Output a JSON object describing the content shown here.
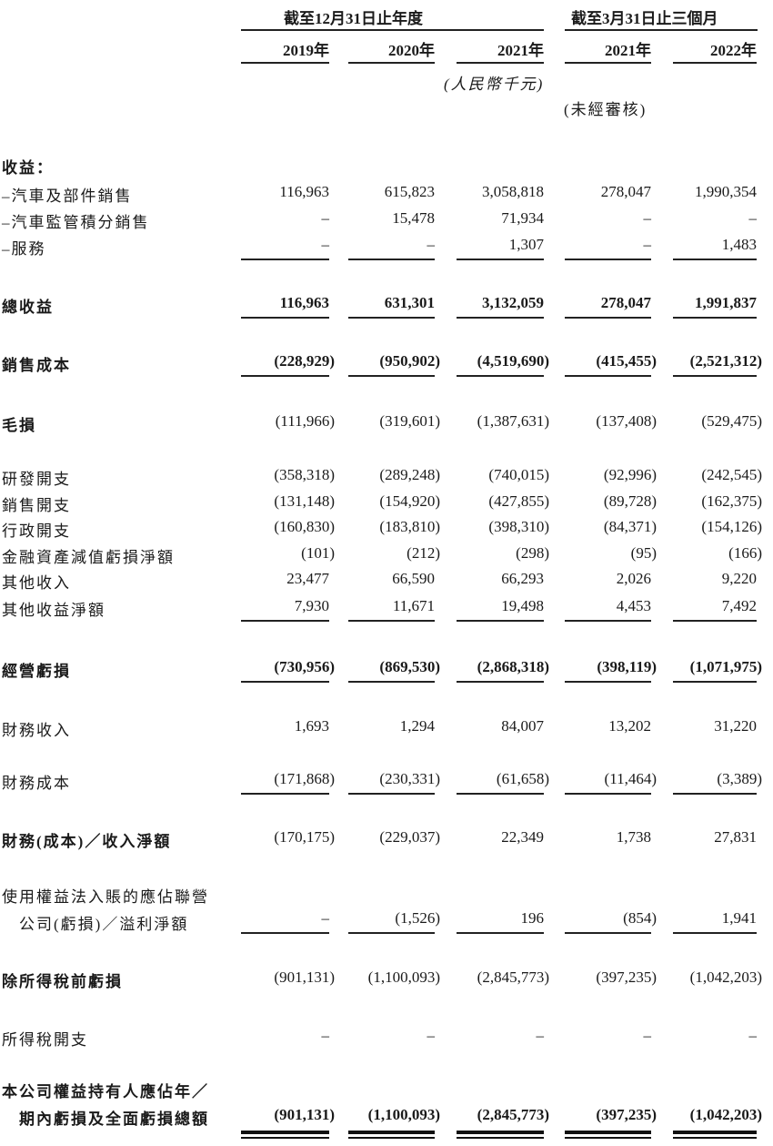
{
  "header": {
    "group1": "截至12月31日止年度",
    "group2": "截至3月31日止三個月",
    "years": [
      "2019年",
      "2020年",
      "2021年",
      "2021年",
      "2022年"
    ],
    "currency_note": "(人民幣千元)",
    "unaudited_note": "(未經審核)"
  },
  "rows": [
    {
      "label": [
        "收益："
      ],
      "values": [],
      "bold": true
    },
    {
      "label": [
        "–汽車及部件銷售"
      ],
      "values": [
        "116,963",
        "615,823",
        "3,058,818",
        "278,047",
        "1,990,354"
      ]
    },
    {
      "label": [
        "–汽車監管積分銷售"
      ],
      "values": [
        "–",
        "15,478",
        "71,934",
        "–",
        "–"
      ]
    },
    {
      "label": [
        "–服務"
      ],
      "values": [
        "–",
        "–",
        "1,307",
        "–",
        "1,483"
      ],
      "underline": "single"
    },
    {
      "label": [
        "總收益"
      ],
      "values": [
        "116,963",
        "631,301",
        "3,132,059",
        "278,047",
        "1,991,837"
      ],
      "bold": true,
      "underline": "single"
    },
    {
      "label": [
        "銷售成本"
      ],
      "values": [
        "(228,929)",
        "(950,902)",
        "(4,519,690)",
        "(415,455)",
        "(2,521,312)"
      ],
      "bold": true,
      "underline": "single"
    },
    {
      "label": [
        "毛損"
      ],
      "values": [
        "(111,966)",
        "(319,601)",
        "(1,387,631)",
        "(137,408)",
        "(529,475)"
      ],
      "bold": true,
      "valuesPlain": true
    },
    {
      "label": [
        "研發開支"
      ],
      "values": [
        "(358,318)",
        "(289,248)",
        "(740,015)",
        "(92,996)",
        "(242,545)"
      ]
    },
    {
      "label": [
        "銷售開支"
      ],
      "values": [
        "(131,148)",
        "(154,920)",
        "(427,855)",
        "(89,728)",
        "(162,375)"
      ]
    },
    {
      "label": [
        "行政開支"
      ],
      "values": [
        "(160,830)",
        "(183,810)",
        "(398,310)",
        "(84,371)",
        "(154,126)"
      ]
    },
    {
      "label": [
        "金融資產減值虧損淨額"
      ],
      "values": [
        "(101)",
        "(212)",
        "(298)",
        "(95)",
        "(166)"
      ]
    },
    {
      "label": [
        "其他收入"
      ],
      "values": [
        "23,477",
        "66,590",
        "66,293",
        "2,026",
        "9,220"
      ]
    },
    {
      "label": [
        "其他收益淨額"
      ],
      "values": [
        "7,930",
        "11,671",
        "19,498",
        "4,453",
        "7,492"
      ],
      "underline": "single"
    },
    {
      "label": [
        "經營虧損"
      ],
      "values": [
        "(730,956)",
        "(869,530)",
        "(2,868,318)",
        "(398,119)",
        "(1,071,975)"
      ],
      "bold": true,
      "underline": "single"
    },
    {
      "label": [
        "財務收入"
      ],
      "values": [
        "1,693",
        "1,294",
        "84,007",
        "13,202",
        "31,220"
      ]
    },
    {
      "label": [
        "財務成本"
      ],
      "values": [
        "(171,868)",
        "(230,331)",
        "(61,658)",
        "(11,464)",
        "(3,389)"
      ],
      "underline": "single"
    },
    {
      "label": [
        "財務(成本)／收入淨額"
      ],
      "values": [
        "(170,175)",
        "(229,037)",
        "22,349",
        "1,738",
        "27,831"
      ],
      "bold": true,
      "valuesPlain": true
    },
    {
      "label": [
        "使用權益法入賬的應佔聯營",
        "　公司(虧損)／溢利淨額"
      ],
      "values": [
        "–",
        "(1,526)",
        "196",
        "(854)",
        "1,941"
      ],
      "underline": "single"
    },
    {
      "label": [
        "除所得稅前虧損"
      ],
      "values": [
        "(901,131)",
        "(1,100,093)",
        "(2,845,773)",
        "(397,235)",
        "(1,042,203)"
      ],
      "bold": true,
      "valuesPlain": true
    },
    {
      "label": [
        "所得稅開支"
      ],
      "values": [
        "–",
        "–",
        "–",
        "–",
        "–"
      ]
    },
    {
      "label": [
        "本公司權益持有人應佔年／",
        "　期內虧損及全面虧損總額"
      ],
      "values": [
        "(901,131)",
        "(1,100,093)",
        "(2,845,773)",
        "(397,235)",
        "(1,042,203)"
      ],
      "bold": true,
      "underline": "double"
    }
  ]
}
